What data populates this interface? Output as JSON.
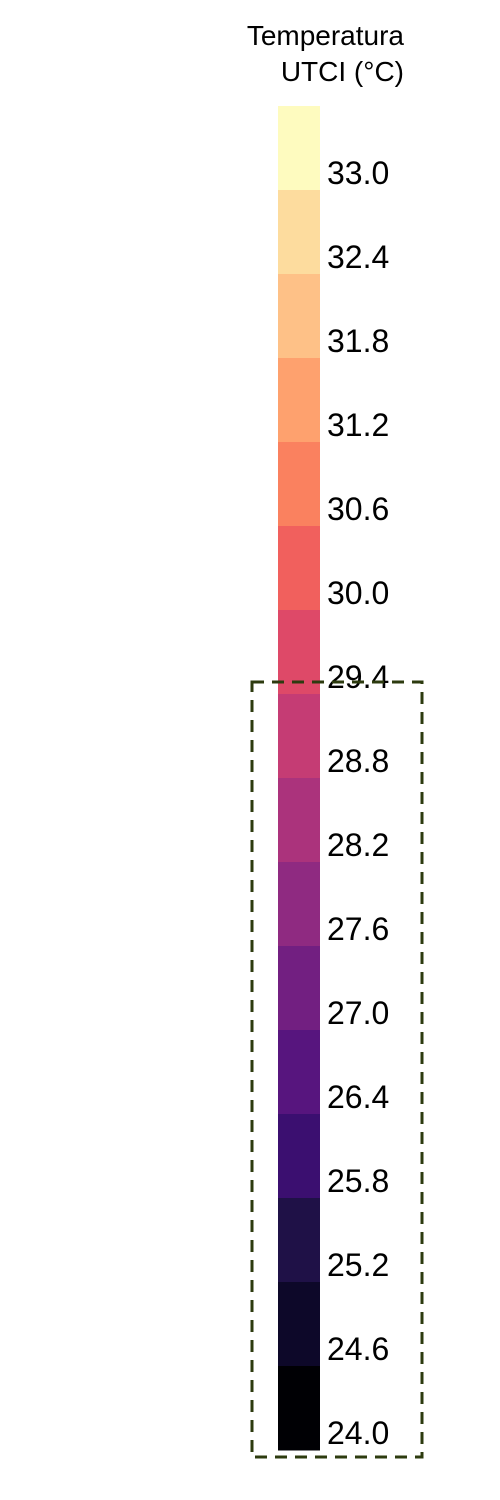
{
  "chart_data": {
    "type": "colorbar",
    "title_lines": [
      "Temperatura",
      "UTCI (°C)"
    ],
    "tick_labels": [
      "33.0",
      "32.4",
      "31.8",
      "31.2",
      "30.6",
      "30.0",
      "29.4",
      "28.8",
      "28.2",
      "27.6",
      "27.0",
      "26.4",
      "25.8",
      "25.2",
      "24.6",
      "24.0"
    ],
    "values": [
      33.0,
      32.4,
      31.8,
      31.2,
      30.6,
      30.0,
      29.4,
      28.8,
      28.2,
      27.6,
      27.0,
      26.4,
      25.8,
      25.2,
      24.6,
      24.0
    ],
    "colors": [
      "#fefbbf",
      "#fddc9e",
      "#fec187",
      "#fea16e",
      "#fa815f",
      "#f1605d",
      "#de4968",
      "#c53c74",
      "#ab337c",
      "#8f2a81",
      "#721f81",
      "#57157e",
      "#3b0f70",
      "#1f1147",
      "#0d0829",
      "#000004"
    ],
    "range": [
      24.0,
      33.0
    ],
    "colormap": "magma",
    "highlight": {
      "from": 24.0,
      "to": 29.4,
      "style": "dashed",
      "color": "#2d3b0f"
    }
  }
}
